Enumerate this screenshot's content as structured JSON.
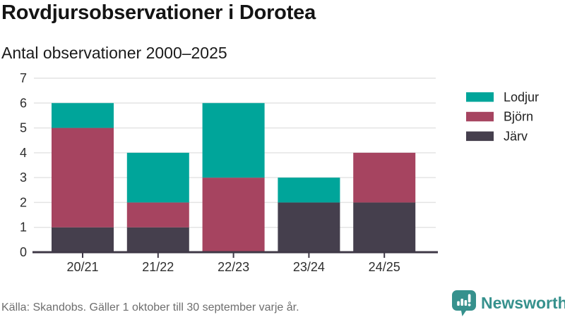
{
  "header": {
    "title": "Rovdjursobservationer i Dorotea",
    "subtitle": "Antal observationer 2000–2025"
  },
  "chart_data": {
    "type": "bar",
    "stacked": true,
    "title": "Rovdjursobservationer i Dorotea",
    "subtitle": "Antal observationer 2000–2025",
    "categories": [
      "20/21",
      "21/22",
      "22/23",
      "23/24",
      "24/25"
    ],
    "series": [
      {
        "name": "Lodjur",
        "color": "#00a59a",
        "values": [
          1,
          2,
          3,
          1,
          0
        ]
      },
      {
        "name": "Björn",
        "color": "#a64460",
        "values": [
          4,
          1,
          3,
          0,
          2
        ]
      },
      {
        "name": "Järv",
        "color": "#453f4d",
        "values": [
          1,
          1,
          0,
          2,
          2
        ]
      }
    ],
    "stack_order_bottom_to_top": [
      "Järv",
      "Björn",
      "Lodjur"
    ],
    "totals_per_category": [
      6,
      4,
      6,
      3,
      4
    ],
    "xlabel": "",
    "ylabel": "",
    "ylim": [
      0,
      7
    ],
    "yticks": [
      0,
      1,
      2,
      3,
      4,
      5,
      6,
      7
    ],
    "grid": true,
    "legend_position": "right",
    "colors": {
      "gridline": "#e4e4e4",
      "axis_line": "#3f3947",
      "tick_label": "#2e2e2e",
      "legend_label": "#1f1f1f"
    }
  },
  "footer": {
    "source": "Källa: Skandobs. Gäller 1 oktober till 30 september varje år."
  },
  "branding": {
    "logo_text": "Newsworthy",
    "logo_color": "#36918d",
    "logo_icon": "bar-chart-speech-bubble-icon"
  }
}
